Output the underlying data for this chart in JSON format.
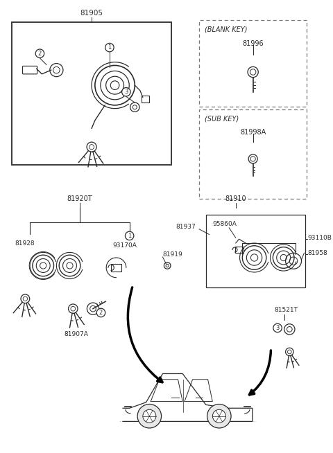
{
  "bg_color": "#ffffff",
  "line_color": "#2a2a2a",
  "text_color": "#2a2a2a",
  "label_fontsize": 7.0,
  "small_fontsize": 6.5,
  "parts_labels": {
    "p81905": "81905",
    "p81996": "81996",
    "p81998A": "81998A",
    "p81910": "81910",
    "p81920T": "81920T",
    "p81928": "81928",
    "p93170A": "93170A",
    "p81919": "81919",
    "p81937": "81937",
    "p95860A": "95860A",
    "p93110B": "93110B",
    "p81958": "81958",
    "p81907A": "81907A",
    "p81521T": "81521T",
    "blank_key": "(BLANK KEY)",
    "sub_key": "(SUB KEY)"
  }
}
